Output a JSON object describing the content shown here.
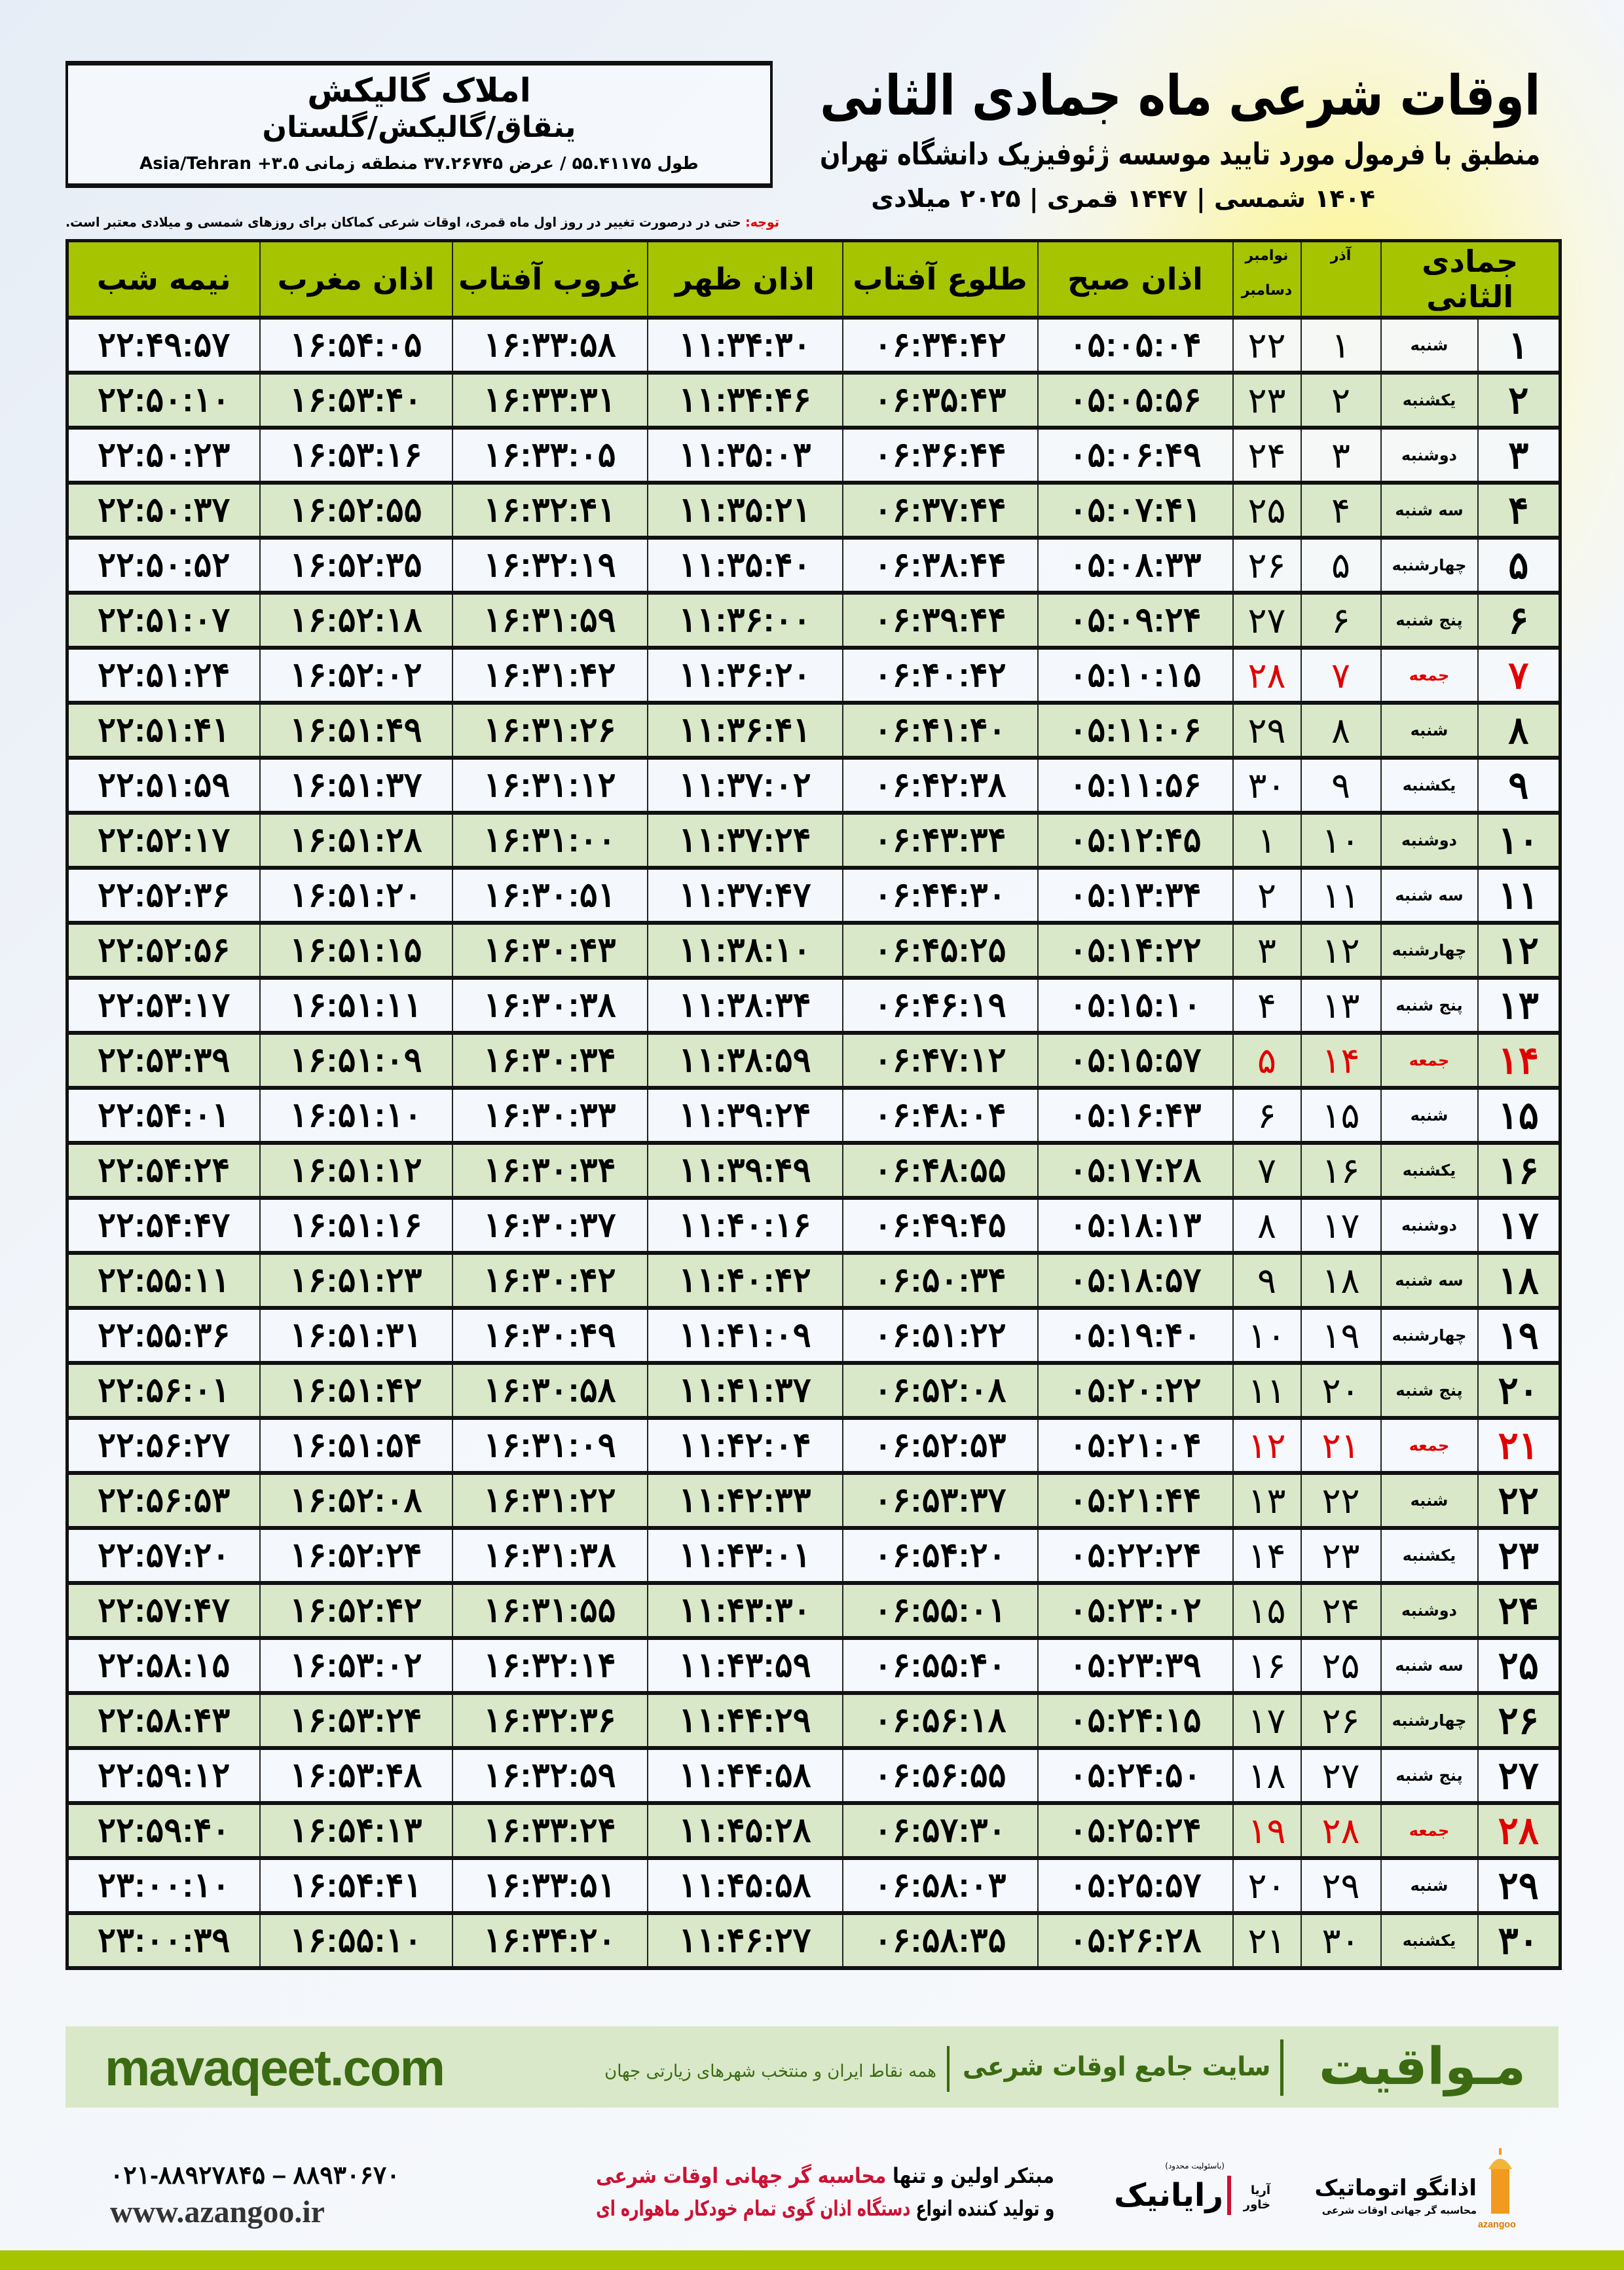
{
  "info": {
    "name": "املاک گالیکش",
    "place": "ینقاق/گالیکش/گلستان",
    "coords": "طول ۵۵.۴۱۱۷۵ / عرض ۳۷.۲۶۷۴۵ منطقه زمانی ۳.۵+ Asia/Tehran"
  },
  "header": {
    "title": "اوقات شرعی ماه جمادی الثانی",
    "subtitle": "منطبق با فرمول مورد تایید موسسه ژئوفیزیک دانشگاه تهران",
    "dateline": "۱۴۰۴ شمسی | ۱۴۴۷ قمری | ۲۰۲۵ میلادی",
    "note_label": "توجه:",
    "note_text": " حتی در درصورت تغییر در روز اول ماه قمری، اوقات شرعی کماکان برای روزهای شمسی و میلادی معتبر است."
  },
  "table": {
    "columns": {
      "hijri": "جمادی الثانی",
      "azar": "آذر",
      "greg_top": "نوامبر",
      "greg_bottom": "دسامبر",
      "fajr": "اذان صبح",
      "sunrise": "طلوع آفتاب",
      "dhuhr": "اذان ظهر",
      "sunset": "غروب آفتاب",
      "maghrib": "اذان مغرب",
      "midnight": "نیمه شب"
    },
    "holiday_weekday": "جمعه",
    "holiday_color": "#e00000",
    "header_color": "#a6c400",
    "alt_row_color": "#d9e8c8",
    "rows": [
      [
        "۱",
        "شنبه",
        "۱",
        "۲۲",
        "۰۵:۰۵:۰۴",
        "۰۶:۳۴:۴۲",
        "۱۱:۳۴:۳۰",
        "۱۶:۳۳:۵۸",
        "۱۶:۵۴:۰۵",
        "۲۲:۴۹:۵۷"
      ],
      [
        "۲",
        "یکشنبه",
        "۲",
        "۲۳",
        "۰۵:۰۵:۵۶",
        "۰۶:۳۵:۴۳",
        "۱۱:۳۴:۴۶",
        "۱۶:۳۳:۳۱",
        "۱۶:۵۳:۴۰",
        "۲۲:۵۰:۱۰"
      ],
      [
        "۳",
        "دوشنبه",
        "۳",
        "۲۴",
        "۰۵:۰۶:۴۹",
        "۰۶:۳۶:۴۴",
        "۱۱:۳۵:۰۳",
        "۱۶:۳۳:۰۵",
        "۱۶:۵۳:۱۶",
        "۲۲:۵۰:۲۳"
      ],
      [
        "۴",
        "سه شنبه",
        "۴",
        "۲۵",
        "۰۵:۰۷:۴۱",
        "۰۶:۳۷:۴۴",
        "۱۱:۳۵:۲۱",
        "۱۶:۳۲:۴۱",
        "۱۶:۵۲:۵۵",
        "۲۲:۵۰:۳۷"
      ],
      [
        "۵",
        "چهارشنبه",
        "۵",
        "۲۶",
        "۰۵:۰۸:۳۳",
        "۰۶:۳۸:۴۴",
        "۱۱:۳۵:۴۰",
        "۱۶:۳۲:۱۹",
        "۱۶:۵۲:۳۵",
        "۲۲:۵۰:۵۲"
      ],
      [
        "۶",
        "پنج شنبه",
        "۶",
        "۲۷",
        "۰۵:۰۹:۲۴",
        "۰۶:۳۹:۴۴",
        "۱۱:۳۶:۰۰",
        "۱۶:۳۱:۵۹",
        "۱۶:۵۲:۱۸",
        "۲۲:۵۱:۰۷"
      ],
      [
        "۷",
        "جمعه",
        "۷",
        "۲۸",
        "۰۵:۱۰:۱۵",
        "۰۶:۴۰:۴۲",
        "۱۱:۳۶:۲۰",
        "۱۶:۳۱:۴۲",
        "۱۶:۵۲:۰۲",
        "۲۲:۵۱:۲۴"
      ],
      [
        "۸",
        "شنبه",
        "۸",
        "۲۹",
        "۰۵:۱۱:۰۶",
        "۰۶:۴۱:۴۰",
        "۱۱:۳۶:۴۱",
        "۱۶:۳۱:۲۶",
        "۱۶:۵۱:۴۹",
        "۲۲:۵۱:۴۱"
      ],
      [
        "۹",
        "یکشنبه",
        "۹",
        "۳۰",
        "۰۵:۱۱:۵۶",
        "۰۶:۴۲:۳۸",
        "۱۱:۳۷:۰۲",
        "۱۶:۳۱:۱۲",
        "۱۶:۵۱:۳۷",
        "۲۲:۵۱:۵۹"
      ],
      [
        "۱۰",
        "دوشنبه",
        "۱۰",
        "۱",
        "۰۵:۱۲:۴۵",
        "۰۶:۴۳:۳۴",
        "۱۱:۳۷:۲۴",
        "۱۶:۳۱:۰۰",
        "۱۶:۵۱:۲۸",
        "۲۲:۵۲:۱۷"
      ],
      [
        "۱۱",
        "سه شنبه",
        "۱۱",
        "۲",
        "۰۵:۱۳:۳۴",
        "۰۶:۴۴:۳۰",
        "۱۱:۳۷:۴۷",
        "۱۶:۳۰:۵۱",
        "۱۶:۵۱:۲۰",
        "۲۲:۵۲:۳۶"
      ],
      [
        "۱۲",
        "چهارشنبه",
        "۱۲",
        "۳",
        "۰۵:۱۴:۲۲",
        "۰۶:۴۵:۲۵",
        "۱۱:۳۸:۱۰",
        "۱۶:۳۰:۴۳",
        "۱۶:۵۱:۱۵",
        "۲۲:۵۲:۵۶"
      ],
      [
        "۱۳",
        "پنج شنبه",
        "۱۳",
        "۴",
        "۰۵:۱۵:۱۰",
        "۰۶:۴۶:۱۹",
        "۱۱:۳۸:۳۴",
        "۱۶:۳۰:۳۸",
        "۱۶:۵۱:۱۱",
        "۲۲:۵۳:۱۷"
      ],
      [
        "۱۴",
        "جمعه",
        "۱۴",
        "۵",
        "۰۵:۱۵:۵۷",
        "۰۶:۴۷:۱۲",
        "۱۱:۳۸:۵۹",
        "۱۶:۳۰:۳۴",
        "۱۶:۵۱:۰۹",
        "۲۲:۵۳:۳۹"
      ],
      [
        "۱۵",
        "شنبه",
        "۱۵",
        "۶",
        "۰۵:۱۶:۴۳",
        "۰۶:۴۸:۰۴",
        "۱۱:۳۹:۲۴",
        "۱۶:۳۰:۳۳",
        "۱۶:۵۱:۱۰",
        "۲۲:۵۴:۰۱"
      ],
      [
        "۱۶",
        "یکشنبه",
        "۱۶",
        "۷",
        "۰۵:۱۷:۲۸",
        "۰۶:۴۸:۵۵",
        "۱۱:۳۹:۴۹",
        "۱۶:۳۰:۳۴",
        "۱۶:۵۱:۱۲",
        "۲۲:۵۴:۲۴"
      ],
      [
        "۱۷",
        "دوشنبه",
        "۱۷",
        "۸",
        "۰۵:۱۸:۱۳",
        "۰۶:۴۹:۴۵",
        "۱۱:۴۰:۱۶",
        "۱۶:۳۰:۳۷",
        "۱۶:۵۱:۱۶",
        "۲۲:۵۴:۴۷"
      ],
      [
        "۱۸",
        "سه شنبه",
        "۱۸",
        "۹",
        "۰۵:۱۸:۵۷",
        "۰۶:۵۰:۳۴",
        "۱۱:۴۰:۴۲",
        "۱۶:۳۰:۴۲",
        "۱۶:۵۱:۲۳",
        "۲۲:۵۵:۱۱"
      ],
      [
        "۱۹",
        "چهارشنبه",
        "۱۹",
        "۱۰",
        "۰۵:۱۹:۴۰",
        "۰۶:۵۱:۲۲",
        "۱۱:۴۱:۰۹",
        "۱۶:۳۰:۴۹",
        "۱۶:۵۱:۳۱",
        "۲۲:۵۵:۳۶"
      ],
      [
        "۲۰",
        "پنج شنبه",
        "۲۰",
        "۱۱",
        "۰۵:۲۰:۲۲",
        "۰۶:۵۲:۰۸",
        "۱۱:۴۱:۳۷",
        "۱۶:۳۰:۵۸",
        "۱۶:۵۱:۴۲",
        "۲۲:۵۶:۰۱"
      ],
      [
        "۲۱",
        "جمعه",
        "۲۱",
        "۱۲",
        "۰۵:۲۱:۰۴",
        "۰۶:۵۲:۵۳",
        "۱۱:۴۲:۰۴",
        "۱۶:۳۱:۰۹",
        "۱۶:۵۱:۵۴",
        "۲۲:۵۶:۲۷"
      ],
      [
        "۲۲",
        "شنبه",
        "۲۲",
        "۱۳",
        "۰۵:۲۱:۴۴",
        "۰۶:۵۳:۳۷",
        "۱۱:۴۲:۳۳",
        "۱۶:۳۱:۲۲",
        "۱۶:۵۲:۰۸",
        "۲۲:۵۶:۵۳"
      ],
      [
        "۲۳",
        "یکشنبه",
        "۲۳",
        "۱۴",
        "۰۵:۲۲:۲۴",
        "۰۶:۵۴:۲۰",
        "۱۱:۴۳:۰۱",
        "۱۶:۳۱:۳۸",
        "۱۶:۵۲:۲۴",
        "۲۲:۵۷:۲۰"
      ],
      [
        "۲۴",
        "دوشنبه",
        "۲۴",
        "۱۵",
        "۰۵:۲۳:۰۲",
        "۰۶:۵۵:۰۱",
        "۱۱:۴۳:۳۰",
        "۱۶:۳۱:۵۵",
        "۱۶:۵۲:۴۲",
        "۲۲:۵۷:۴۷"
      ],
      [
        "۲۵",
        "سه شنبه",
        "۲۵",
        "۱۶",
        "۰۵:۲۳:۳۹",
        "۰۶:۵۵:۴۰",
        "۱۱:۴۳:۵۹",
        "۱۶:۳۲:۱۴",
        "۱۶:۵۳:۰۲",
        "۲۲:۵۸:۱۵"
      ],
      [
        "۲۶",
        "چهارشنبه",
        "۲۶",
        "۱۷",
        "۰۵:۲۴:۱۵",
        "۰۶:۵۶:۱۸",
        "۱۱:۴۴:۲۹",
        "۱۶:۳۲:۳۶",
        "۱۶:۵۳:۲۴",
        "۲۲:۵۸:۴۳"
      ],
      [
        "۲۷",
        "پنج شنبه",
        "۲۷",
        "۱۸",
        "۰۵:۲۴:۵۰",
        "۰۶:۵۶:۵۵",
        "۱۱:۴۴:۵۸",
        "۱۶:۳۲:۵۹",
        "۱۶:۵۳:۴۸",
        "۲۲:۵۹:۱۲"
      ],
      [
        "۲۸",
        "جمعه",
        "۲۸",
        "۱۹",
        "۰۵:۲۵:۲۴",
        "۰۶:۵۷:۳۰",
        "۱۱:۴۵:۲۸",
        "۱۶:۳۳:۲۴",
        "۱۶:۵۴:۱۳",
        "۲۲:۵۹:۴۰"
      ],
      [
        "۲۹",
        "شنبه",
        "۲۹",
        "۲۰",
        "۰۵:۲۵:۵۷",
        "۰۶:۵۸:۰۳",
        "۱۱:۴۵:۵۸",
        "۱۶:۳۳:۵۱",
        "۱۶:۵۴:۴۱",
        "۲۳:۰۰:۱۰"
      ],
      [
        "۳۰",
        "یکشنبه",
        "۳۰",
        "۲۱",
        "۰۵:۲۶:۲۸",
        "۰۶:۵۸:۳۵",
        "۱۱:۴۶:۲۷",
        "۱۶:۳۴:۲۰",
        "۱۶:۵۵:۱۰",
        "۲۳:۰۰:۳۹"
      ]
    ]
  },
  "banner": {
    "brand": "مـواقیت",
    "slogan": "سایت جامع اوقات شرعی",
    "sub": "همه نقاط ایران و منتخب شهرهای زیارتی جهان",
    "domain": "mavaqeet.com",
    "color": "#3b6a12"
  },
  "footer": {
    "phones": "۰۲۱-۸۸۹۲۷۸۴۵ – ۸۸۹۳۰۶۷۰",
    "website": "www.azangoo.ir",
    "promo1_a": "مبتکر اولین و تنها ",
    "promo1_b": "محاسبه گر جهانی اوقات شرعی",
    "promo2_a": "و تولید کننده انواع ",
    "promo2_b": "دستگاه اذان گوی تمام خودکار ماهواره ای",
    "logo_rayanik": "رایانیک",
    "logo_rayanik_sub": "آریا خاور",
    "logo_rayanik_note": "(باسئولیت محدود)",
    "logo_azangoo": "اذانگو اتوماتیک",
    "logo_azangoo_sub": "محاسبه گر جهانی اوقات شرعی",
    "logo_azangoo_latin": "azangoo"
  }
}
